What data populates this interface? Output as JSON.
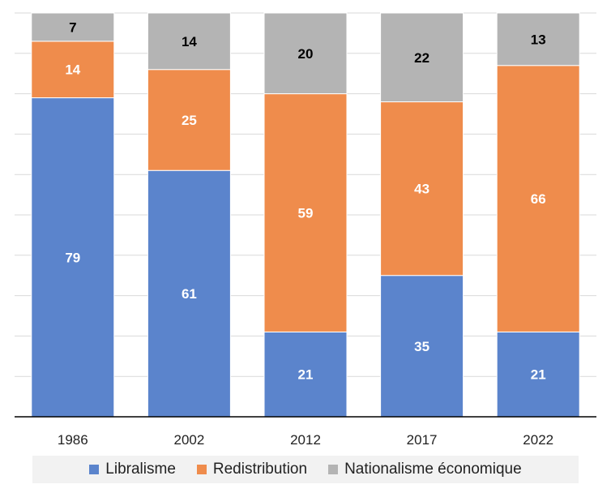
{
  "chart_data": {
    "type": "bar",
    "stacked": true,
    "categories": [
      "1986",
      "2002",
      "2012",
      "2017",
      "2022"
    ],
    "series": [
      {
        "name": "Libralisme",
        "values": [
          79,
          61,
          21,
          35,
          21
        ],
        "color": "#5b84cc",
        "label_color": "#ffffff"
      },
      {
        "name": "Redistribution",
        "values": [
          14,
          25,
          59,
          43,
          66
        ],
        "color": "#ef8c4c",
        "label_color": "#ffffff"
      },
      {
        "name": "Nationalisme économique",
        "values": [
          7,
          14,
          20,
          22,
          13
        ],
        "color": "#b4b4b4",
        "label_color": "#000000"
      }
    ],
    "ylim": [
      0,
      100
    ],
    "grid": true,
    "legend_position": "bottom"
  }
}
